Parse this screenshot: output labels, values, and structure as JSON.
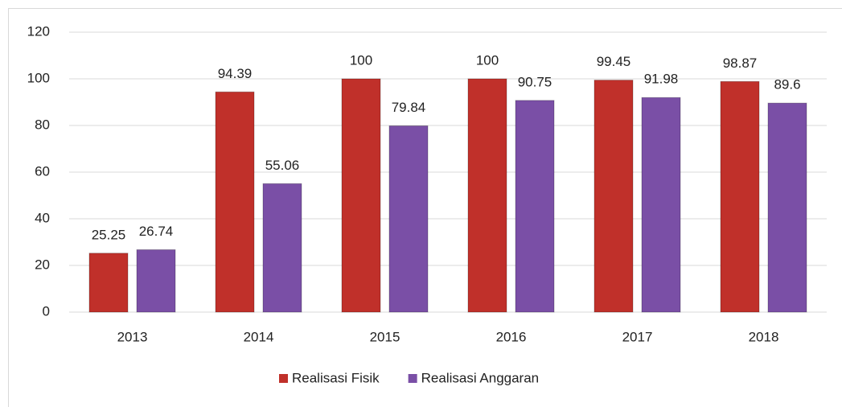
{
  "chart_data": {
    "type": "bar",
    "categories": [
      "2013",
      "2014",
      "2015",
      "2016",
      "2017",
      "2018"
    ],
    "series": [
      {
        "name": "Realisasi Fisik",
        "color": "#c0302a",
        "values": [
          25.25,
          94.39,
          100,
          100,
          99.45,
          98.87
        ]
      },
      {
        "name": "Realisasi Anggaran",
        "color": "#7a4fa6",
        "values": [
          26.74,
          55.06,
          79.84,
          90.75,
          91.98,
          89.6
        ]
      }
    ],
    "ylim": [
      0,
      120
    ],
    "yticks": [
      0,
      20,
      40,
      60,
      80,
      100,
      120
    ],
    "grid": true,
    "legend": "bottom"
  }
}
